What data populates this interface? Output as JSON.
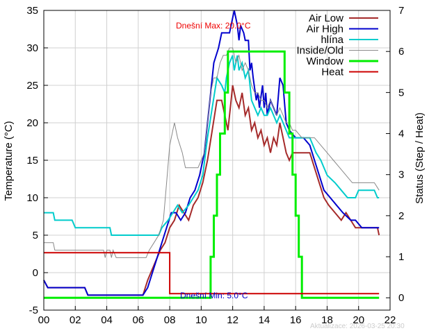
{
  "chart_data": {
    "type": "line",
    "ylabel": "Temperature (°C)",
    "y2label": "Status (Step / Heat)",
    "xlim": [
      0,
      22
    ],
    "ylim": [
      -5,
      35
    ],
    "y2lim": [
      -0.3,
      7
    ],
    "x_ticks": [
      "00",
      "02",
      "04",
      "06",
      "08",
      "10",
      "12",
      "14",
      "16",
      "18",
      "20",
      "22"
    ],
    "y_ticks": [
      "-5",
      "0",
      "5",
      "10",
      "15",
      "20",
      "25",
      "30",
      "35"
    ],
    "y2_ticks": [
      "0",
      "1",
      "2",
      "3",
      "4",
      "5",
      "6",
      "7"
    ],
    "grid": true,
    "legend_position": "top-right",
    "annotations": {
      "max": "Dnešní Max: 20.0°C",
      "min": "Dnešní Min: 5.0°C",
      "updated": "Aktualizace: 2026-03-25 20:30"
    },
    "colors": {
      "air_low": "#a52a2a",
      "air_high": "#0000cd",
      "hlina": "#00cccc",
      "inside_old": "#888888",
      "window": "#00ee00",
      "heat": "#cc0000",
      "max_note": "#ee0000",
      "min_note": "#0000cd",
      "updated_note": "#cccccc"
    },
    "series": [
      {
        "name": "Air Low",
        "key": "air_low",
        "axis": "left",
        "points": [
          [
            0,
            -1
          ],
          [
            0.25,
            -2
          ],
          [
            2.6,
            -2
          ],
          [
            2.8,
            -3
          ],
          [
            6.3,
            -3
          ],
          [
            6.6,
            -1
          ],
          [
            7.0,
            1
          ],
          [
            7.4,
            3
          ],
          [
            7.7,
            4
          ],
          [
            8.0,
            6
          ],
          [
            8.3,
            7
          ],
          [
            8.6,
            9
          ],
          [
            8.9,
            8
          ],
          [
            9.2,
            7
          ],
          [
            9.5,
            9
          ],
          [
            9.8,
            10
          ],
          [
            10.1,
            12
          ],
          [
            10.4,
            15
          ],
          [
            10.7,
            19
          ],
          [
            11.0,
            23
          ],
          [
            11.3,
            23
          ],
          [
            11.5,
            21
          ],
          [
            11.7,
            19
          ],
          [
            11.9,
            23
          ],
          [
            12.0,
            25
          ],
          [
            12.2,
            23
          ],
          [
            12.4,
            22
          ],
          [
            12.6,
            24
          ],
          [
            12.8,
            21
          ],
          [
            13.0,
            22
          ],
          [
            13.2,
            19
          ],
          [
            13.4,
            20
          ],
          [
            13.6,
            18
          ],
          [
            13.8,
            19
          ],
          [
            14.0,
            17
          ],
          [
            14.2,
            18
          ],
          [
            14.4,
            16
          ],
          [
            14.6,
            18
          ],
          [
            14.8,
            17
          ],
          [
            15.0,
            20
          ],
          [
            15.2,
            18
          ],
          [
            15.4,
            16
          ],
          [
            15.6,
            15
          ],
          [
            15.8,
            16
          ],
          [
            16.0,
            16
          ],
          [
            16.5,
            16
          ],
          [
            16.9,
            16
          ],
          [
            17.2,
            14
          ],
          [
            17.5,
            12
          ],
          [
            17.8,
            10
          ],
          [
            18.1,
            9
          ],
          [
            18.5,
            8
          ],
          [
            18.9,
            7
          ],
          [
            19.2,
            8
          ],
          [
            19.5,
            7
          ],
          [
            19.8,
            6
          ],
          [
            20.5,
            6
          ],
          [
            21.2,
            6
          ],
          [
            21.3,
            5
          ]
        ]
      },
      {
        "name": "Air High",
        "key": "air_high",
        "axis": "left",
        "points": [
          [
            0,
            -1
          ],
          [
            0.25,
            -2
          ],
          [
            2.6,
            -2
          ],
          [
            2.8,
            -3
          ],
          [
            6.3,
            -3
          ],
          [
            6.6,
            -2
          ],
          [
            6.9,
            0
          ],
          [
            7.2,
            2
          ],
          [
            7.5,
            4
          ],
          [
            7.8,
            6
          ],
          [
            8.1,
            8
          ],
          [
            8.4,
            8
          ],
          [
            8.7,
            7
          ],
          [
            9.0,
            8
          ],
          [
            9.3,
            10
          ],
          [
            9.6,
            11
          ],
          [
            9.9,
            13
          ],
          [
            10.2,
            16
          ],
          [
            10.5,
            22
          ],
          [
            10.8,
            28
          ],
          [
            11.1,
            30
          ],
          [
            11.3,
            32
          ],
          [
            11.6,
            32
          ],
          [
            11.8,
            32
          ],
          [
            12.0,
            34
          ],
          [
            12.1,
            35
          ],
          [
            12.3,
            33
          ],
          [
            12.4,
            31
          ],
          [
            12.5,
            33
          ],
          [
            12.7,
            32
          ],
          [
            12.8,
            31
          ],
          [
            13.0,
            31
          ],
          [
            13.1,
            27
          ],
          [
            13.2,
            28
          ],
          [
            13.3,
            26
          ],
          [
            13.5,
            23
          ],
          [
            13.6,
            24
          ],
          [
            13.7,
            22
          ],
          [
            13.9,
            25
          ],
          [
            14.0,
            22
          ],
          [
            14.1,
            24
          ],
          [
            14.2,
            21
          ],
          [
            14.4,
            23
          ],
          [
            14.6,
            22
          ],
          [
            14.8,
            21
          ],
          [
            15.0,
            26
          ],
          [
            15.2,
            25
          ],
          [
            15.4,
            20
          ],
          [
            15.6,
            19
          ],
          [
            16.0,
            18
          ],
          [
            16.5,
            18
          ],
          [
            16.9,
            17
          ],
          [
            17.2,
            15
          ],
          [
            17.5,
            13
          ],
          [
            17.8,
            11
          ],
          [
            18.2,
            10
          ],
          [
            18.6,
            9
          ],
          [
            19.0,
            8
          ],
          [
            19.5,
            7
          ],
          [
            19.8,
            7
          ],
          [
            20.2,
            6
          ],
          [
            21.3,
            6
          ]
        ]
      },
      {
        "name": "hlína",
        "key": "hlina",
        "axis": "left",
        "points": [
          [
            0,
            8
          ],
          [
            0.6,
            8
          ],
          [
            0.7,
            7
          ],
          [
            1.8,
            7
          ],
          [
            2.0,
            6
          ],
          [
            4.2,
            6
          ],
          [
            4.3,
            5
          ],
          [
            7.3,
            5
          ],
          [
            7.5,
            6
          ],
          [
            7.9,
            7
          ],
          [
            8.2,
            8
          ],
          [
            8.5,
            9
          ],
          [
            8.8,
            8
          ],
          [
            9.2,
            9
          ],
          [
            9.5,
            10
          ],
          [
            9.8,
            11
          ],
          [
            10.1,
            13
          ],
          [
            10.4,
            18
          ],
          [
            10.7,
            22
          ],
          [
            11.0,
            26
          ],
          [
            11.3,
            25
          ],
          [
            11.5,
            24
          ],
          [
            11.6,
            26
          ],
          [
            11.8,
            28
          ],
          [
            12.0,
            29
          ],
          [
            12.1,
            27
          ],
          [
            12.3,
            29
          ],
          [
            12.4,
            27
          ],
          [
            12.6,
            28
          ],
          [
            12.8,
            26
          ],
          [
            13.0,
            27
          ],
          [
            13.2,
            23
          ],
          [
            13.4,
            22
          ],
          [
            13.6,
            21
          ],
          [
            13.8,
            22
          ],
          [
            14.0,
            21
          ],
          [
            14.2,
            21
          ],
          [
            14.4,
            22
          ],
          [
            14.6,
            21
          ],
          [
            14.8,
            20
          ],
          [
            15.0,
            21
          ],
          [
            15.2,
            20
          ],
          [
            15.4,
            19
          ],
          [
            15.6,
            18
          ],
          [
            15.8,
            18
          ],
          [
            16.0,
            18
          ],
          [
            16.5,
            18
          ],
          [
            16.9,
            18
          ],
          [
            17.3,
            16
          ],
          [
            17.6,
            15
          ],
          [
            18.0,
            13
          ],
          [
            18.5,
            12
          ],
          [
            18.9,
            11
          ],
          [
            19.3,
            10
          ],
          [
            19.8,
            10
          ],
          [
            20.0,
            11
          ],
          [
            21.0,
            11
          ],
          [
            21.2,
            10
          ],
          [
            21.3,
            10
          ]
        ]
      },
      {
        "name": "Inside/Old",
        "key": "inside_old",
        "axis": "left",
        "points": [
          [
            0,
            4
          ],
          [
            0.6,
            4
          ],
          [
            0.7,
            3
          ],
          [
            3.8,
            3
          ],
          [
            3.9,
            2
          ],
          [
            4.0,
            3
          ],
          [
            4.2,
            3
          ],
          [
            4.3,
            2
          ],
          [
            4.4,
            3
          ],
          [
            4.6,
            2
          ],
          [
            6.5,
            2
          ],
          [
            6.7,
            3
          ],
          [
            7.0,
            4
          ],
          [
            7.3,
            5
          ],
          [
            7.6,
            7
          ],
          [
            7.8,
            12
          ],
          [
            8.0,
            17
          ],
          [
            8.2,
            19
          ],
          [
            8.3,
            20
          ],
          [
            8.5,
            18
          ],
          [
            8.8,
            16
          ],
          [
            9.0,
            14
          ],
          [
            9.5,
            14
          ],
          [
            9.8,
            14
          ],
          [
            10.0,
            15
          ],
          [
            10.2,
            16
          ],
          [
            10.4,
            20
          ],
          [
            10.6,
            24
          ],
          [
            10.8,
            26
          ],
          [
            11.0,
            26
          ],
          [
            11.2,
            28
          ],
          [
            11.4,
            29
          ],
          [
            11.6,
            29
          ],
          [
            11.8,
            30
          ],
          [
            12.0,
            30
          ],
          [
            12.2,
            28
          ],
          [
            12.4,
            29
          ],
          [
            12.6,
            27
          ],
          [
            12.8,
            28
          ],
          [
            13.0,
            27
          ],
          [
            13.2,
            25
          ],
          [
            13.4,
            24
          ],
          [
            13.6,
            24
          ],
          [
            13.8,
            23
          ],
          [
            14.0,
            23
          ],
          [
            14.2,
            22
          ],
          [
            14.4,
            23
          ],
          [
            14.6,
            22
          ],
          [
            14.8,
            21
          ],
          [
            15.0,
            22
          ],
          [
            15.2,
            21
          ],
          [
            15.4,
            20
          ],
          [
            15.6,
            20
          ],
          [
            15.8,
            19
          ],
          [
            16.0,
            19
          ],
          [
            16.4,
            18
          ],
          [
            16.8,
            18
          ],
          [
            17.2,
            18
          ],
          [
            17.6,
            17
          ],
          [
            18.0,
            16
          ],
          [
            18.4,
            15
          ],
          [
            18.8,
            14
          ],
          [
            19.2,
            13
          ],
          [
            19.6,
            12
          ],
          [
            20.0,
            12
          ],
          [
            20.4,
            12
          ],
          [
            20.8,
            12
          ],
          [
            21.0,
            12
          ],
          [
            21.3,
            11
          ]
        ]
      },
      {
        "name": "Window",
        "key": "window",
        "axis": "right",
        "points": [
          [
            0,
            0
          ],
          [
            10.6,
            0
          ],
          [
            10.6,
            1
          ],
          [
            10.8,
            1
          ],
          [
            10.8,
            2
          ],
          [
            11.0,
            2
          ],
          [
            11.0,
            3
          ],
          [
            11.2,
            3
          ],
          [
            11.2,
            4
          ],
          [
            11.5,
            4
          ],
          [
            11.5,
            5
          ],
          [
            11.7,
            5
          ],
          [
            11.7,
            6
          ],
          [
            15.3,
            6
          ],
          [
            15.3,
            5
          ],
          [
            15.6,
            5
          ],
          [
            15.6,
            4
          ],
          [
            15.8,
            4
          ],
          [
            15.8,
            3
          ],
          [
            16.0,
            3
          ],
          [
            16.0,
            2
          ],
          [
            16.2,
            2
          ],
          [
            16.2,
            1
          ],
          [
            16.4,
            1
          ],
          [
            16.4,
            0
          ],
          [
            21.3,
            0
          ]
        ]
      },
      {
        "name": "Heat",
        "key": "heat",
        "axis": "right",
        "points": [
          [
            0,
            1.1
          ],
          [
            8.0,
            1.1
          ],
          [
            8.0,
            0.1
          ],
          [
            21.3,
            0.1
          ]
        ]
      }
    ]
  }
}
